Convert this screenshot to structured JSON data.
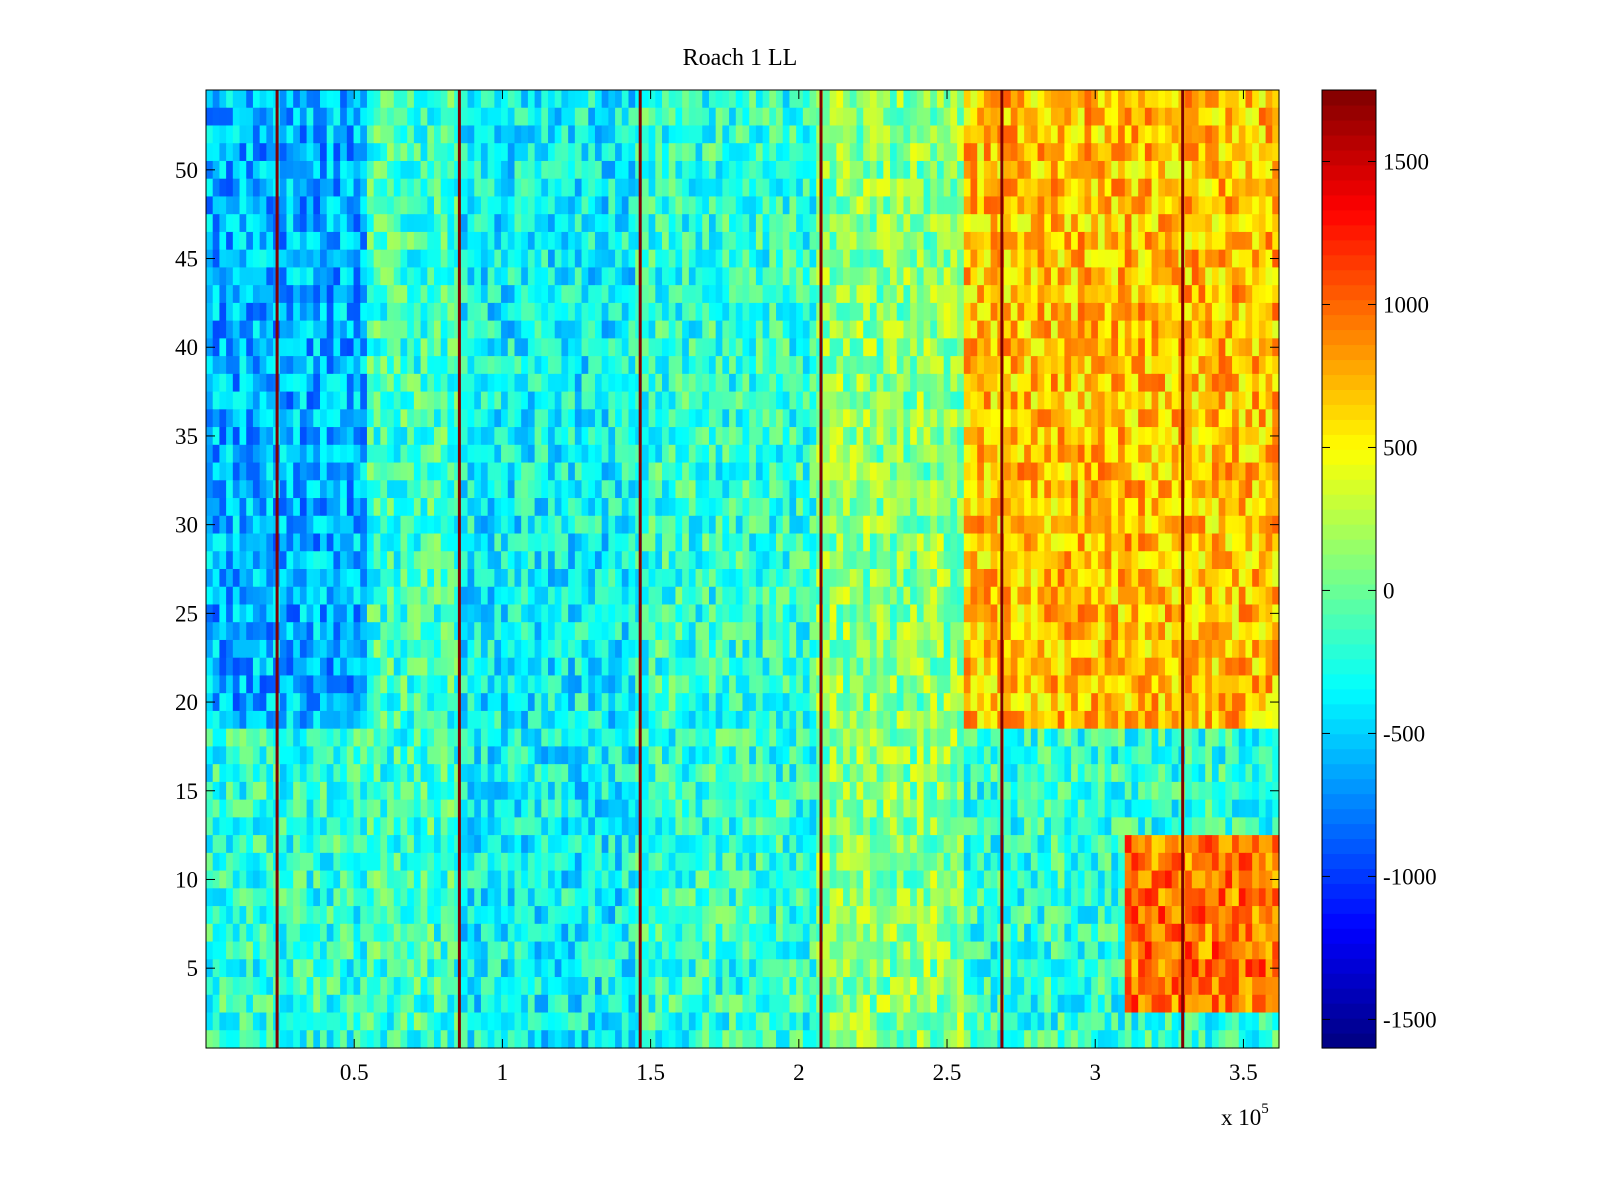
{
  "chart_data": {
    "type": "heatmap",
    "title": "Roach 1 LL",
    "xlabel": "",
    "ylabel": "",
    "xlim": [
      0,
      362000
    ],
    "ylim": [
      0.5,
      54.5
    ],
    "x_multiplier_label": "x 10",
    "x_multiplier_exponent": "5",
    "xticks": [
      0.5,
      1,
      1.5,
      2,
      2.5,
      3,
      3.5
    ],
    "xtick_labels": [
      "0.5",
      "1",
      "1.5",
      "2",
      "2.5",
      "3",
      "3.5"
    ],
    "yticks": [
      5,
      10,
      15,
      20,
      25,
      30,
      35,
      40,
      45,
      50
    ],
    "ytick_labels": [
      "5",
      "10",
      "15",
      "20",
      "25",
      "30",
      "35",
      "40",
      "45",
      "50"
    ],
    "colormap": "jet",
    "clim": [
      -1600,
      1750
    ],
    "colorbar_ticks": [
      -1500,
      -1000,
      -500,
      0,
      500,
      1000,
      1500
    ],
    "colorbar_tick_labels": [
      "-1500",
      "-1000",
      "-500",
      "0",
      "500",
      "1000",
      "1500"
    ],
    "channels": 54,
    "time_bins": 160,
    "marker_lines_x": [
      0.24,
      0.855,
      1.465,
      2.075,
      2.685,
      3.295
    ],
    "marker_value": 1750,
    "region_mean_values": [
      {
        "x_range": [
          0.0,
          0.55
        ],
        "channel_range": [
          19,
          54
        ],
        "value": -600
      },
      {
        "x_range": [
          0.0,
          0.55
        ],
        "channel_range": [
          4,
          18
        ],
        "value": -200
      },
      {
        "x_range": [
          0.55,
          0.85
        ],
        "channel_range": [
          1,
          54
        ],
        "value": -150
      },
      {
        "x_range": [
          0.85,
          1.45
        ],
        "channel_range": [
          1,
          54
        ],
        "value": -350
      },
      {
        "x_range": [
          1.45,
          2.05
        ],
        "channel_range": [
          1,
          54
        ],
        "value": -200
      },
      {
        "x_range": [
          2.05,
          2.55
        ],
        "channel_range": [
          1,
          54
        ],
        "value": 100
      },
      {
        "x_range": [
          2.55,
          3.62
        ],
        "channel_range": [
          19,
          54
        ],
        "value": 700
      },
      {
        "x_range": [
          3.1,
          3.62
        ],
        "channel_range": [
          3,
          12
        ],
        "value": 950
      }
    ]
  }
}
